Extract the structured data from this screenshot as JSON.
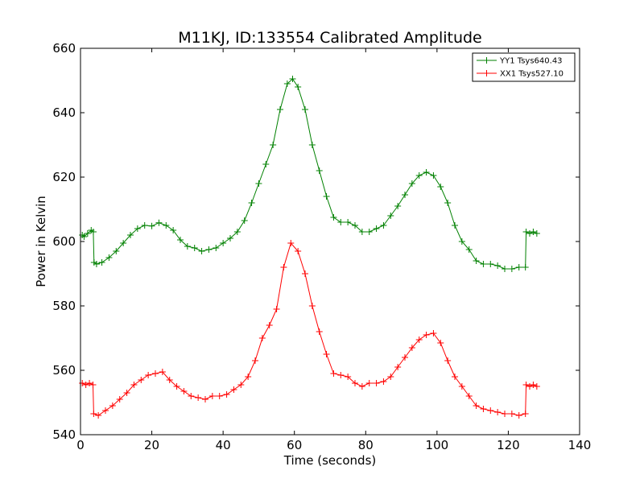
{
  "chart_data": {
    "type": "line",
    "title": "M11KJ, ID:133554 Calibrated Amplitude",
    "xlabel": "Time (seconds)",
    "ylabel": "Power in Kelvin",
    "xlim": [
      0,
      140
    ],
    "ylim": [
      540,
      660
    ],
    "xticks": [
      0,
      20,
      40,
      60,
      80,
      100,
      120,
      140
    ],
    "yticks": [
      540,
      560,
      580,
      600,
      620,
      640,
      660
    ],
    "grid": false,
    "legend_position": "top-right",
    "marker": "plus",
    "series": [
      {
        "name": "YY1 Tsys640.43",
        "color": "#008000",
        "points": [
          [
            0.5,
            602
          ],
          [
            1,
            601.5
          ],
          [
            2,
            602.5
          ],
          [
            3,
            603.5
          ],
          [
            3.6,
            603
          ],
          [
            3.8,
            593.5
          ],
          [
            4.5,
            593
          ],
          [
            6,
            593.5
          ],
          [
            8,
            595
          ],
          [
            10,
            597
          ],
          [
            12,
            599.5
          ],
          [
            14,
            602
          ],
          [
            16,
            604
          ],
          [
            18,
            605
          ],
          [
            20,
            604.8
          ],
          [
            22,
            605.8
          ],
          [
            24,
            605
          ],
          [
            26,
            603.5
          ],
          [
            28,
            600.5
          ],
          [
            30,
            598.5
          ],
          [
            32,
            598
          ],
          [
            34,
            597
          ],
          [
            36,
            597.5
          ],
          [
            38,
            598
          ],
          [
            40,
            599.5
          ],
          [
            42,
            601
          ],
          [
            44,
            603
          ],
          [
            46,
            606.5
          ],
          [
            48,
            612
          ],
          [
            50,
            618
          ],
          [
            52,
            624
          ],
          [
            54,
            630
          ],
          [
            56,
            641
          ],
          [
            58,
            649
          ],
          [
            59.5,
            650.5
          ],
          [
            61,
            648
          ],
          [
            63,
            641
          ],
          [
            65,
            630
          ],
          [
            67,
            622
          ],
          [
            69,
            614
          ],
          [
            71,
            607.5
          ],
          [
            73,
            606
          ],
          [
            75,
            606
          ],
          [
            77,
            605
          ],
          [
            79,
            603
          ],
          [
            81,
            603
          ],
          [
            83,
            604
          ],
          [
            85,
            605
          ],
          [
            87,
            608
          ],
          [
            89,
            611
          ],
          [
            91,
            614.5
          ],
          [
            93,
            618
          ],
          [
            95,
            620.5
          ],
          [
            97,
            621.5
          ],
          [
            99,
            620.5
          ],
          [
            101,
            617
          ],
          [
            103,
            612
          ],
          [
            105,
            605
          ],
          [
            107,
            600
          ],
          [
            109,
            597.5
          ],
          [
            111,
            594
          ],
          [
            113,
            593
          ],
          [
            115,
            593
          ],
          [
            117,
            592.5
          ],
          [
            119,
            591.5
          ],
          [
            121,
            591.5
          ],
          [
            123,
            592
          ],
          [
            124.8,
            592
          ],
          [
            125,
            603
          ],
          [
            126,
            602.5
          ],
          [
            127,
            603
          ],
          [
            128,
            602.5
          ]
        ]
      },
      {
        "name": "XX1 Tsys527.10",
        "color": "#ff0000",
        "points": [
          [
            0.5,
            556
          ],
          [
            1.5,
            555.5
          ],
          [
            2.5,
            556
          ],
          [
            3.5,
            555.5
          ],
          [
            3.7,
            546.5
          ],
          [
            5,
            546
          ],
          [
            7,
            547.5
          ],
          [
            9,
            549
          ],
          [
            11,
            551
          ],
          [
            13,
            553
          ],
          [
            15,
            555.5
          ],
          [
            17,
            557
          ],
          [
            19,
            558.5
          ],
          [
            21,
            559
          ],
          [
            23,
            559.5
          ],
          [
            25,
            557
          ],
          [
            27,
            555
          ],
          [
            29,
            553.5
          ],
          [
            31,
            552
          ],
          [
            33,
            551.5
          ],
          [
            35,
            551
          ],
          [
            37,
            552
          ],
          [
            39,
            552
          ],
          [
            41,
            552.5
          ],
          [
            43,
            554
          ],
          [
            45,
            555.5
          ],
          [
            47,
            558
          ],
          [
            49,
            563
          ],
          [
            51,
            570
          ],
          [
            53,
            574
          ],
          [
            55,
            579
          ],
          [
            57,
            592
          ],
          [
            59,
            599.5
          ],
          [
            61,
            597
          ],
          [
            63,
            590
          ],
          [
            65,
            580
          ],
          [
            67,
            572
          ],
          [
            69,
            565
          ],
          [
            71,
            559
          ],
          [
            73,
            558.5
          ],
          [
            75,
            558
          ],
          [
            77,
            556
          ],
          [
            79,
            555
          ],
          [
            81,
            556
          ],
          [
            83,
            556
          ],
          [
            85,
            556.5
          ],
          [
            87,
            558
          ],
          [
            89,
            561
          ],
          [
            91,
            564
          ],
          [
            93,
            567
          ],
          [
            95,
            569.5
          ],
          [
            97,
            571
          ],
          [
            99,
            571.5
          ],
          [
            101,
            568.5
          ],
          [
            103,
            563
          ],
          [
            105,
            558
          ],
          [
            107,
            555
          ],
          [
            109,
            552
          ],
          [
            111,
            549
          ],
          [
            113,
            548
          ],
          [
            115,
            547.5
          ],
          [
            117,
            547
          ],
          [
            119,
            546.5
          ],
          [
            121,
            546.5
          ],
          [
            123,
            546
          ],
          [
            124.8,
            546.5
          ],
          [
            125,
            555.5
          ],
          [
            126,
            555
          ],
          [
            127,
            555.5
          ],
          [
            128,
            555
          ]
        ]
      }
    ]
  }
}
